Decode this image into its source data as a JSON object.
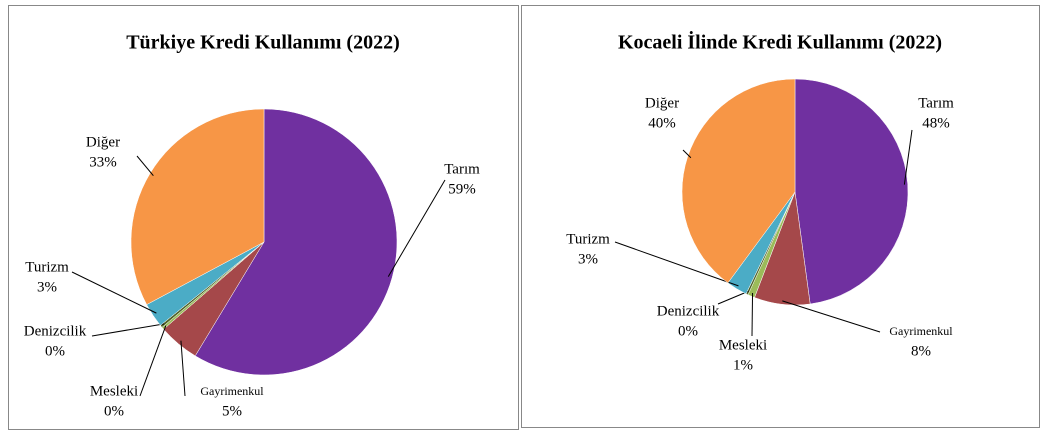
{
  "chart_data": [
    {
      "type": "pie",
      "title": "Türkiye Kredi Kullanımı (2022)",
      "categories": [
        "Tarım",
        "Gayrimenkul",
        "Mesleki",
        "Denizcilik",
        "Turizm",
        "Diğer"
      ],
      "values": [
        59,
        5,
        0.3,
        0.3,
        3,
        33
      ],
      "value_labels": [
        "59%",
        "5%",
        "0%",
        "0%",
        "3%",
        "33%"
      ],
      "colors": [
        "#7030a0",
        "#a5484a",
        "#9bbb59",
        "#4f6228",
        "#4bacc6",
        "#f79646"
      ]
    },
    {
      "type": "pie",
      "title": "Kocaeli İlinde Kredi Kullanımı (2022)",
      "categories": [
        "Tarım",
        "Gayrimenkul",
        "Mesleki",
        "Denizcilik",
        "Turizm",
        "Diğer"
      ],
      "values": [
        48,
        8,
        1,
        0.3,
        3,
        40
      ],
      "value_labels": [
        "48%",
        "8%",
        "1%",
        "0%",
        "3%",
        "40%"
      ],
      "colors": [
        "#7030a0",
        "#a5484a",
        "#9bbb59",
        "#4f6228",
        "#4bacc6",
        "#f79646"
      ]
    }
  ]
}
